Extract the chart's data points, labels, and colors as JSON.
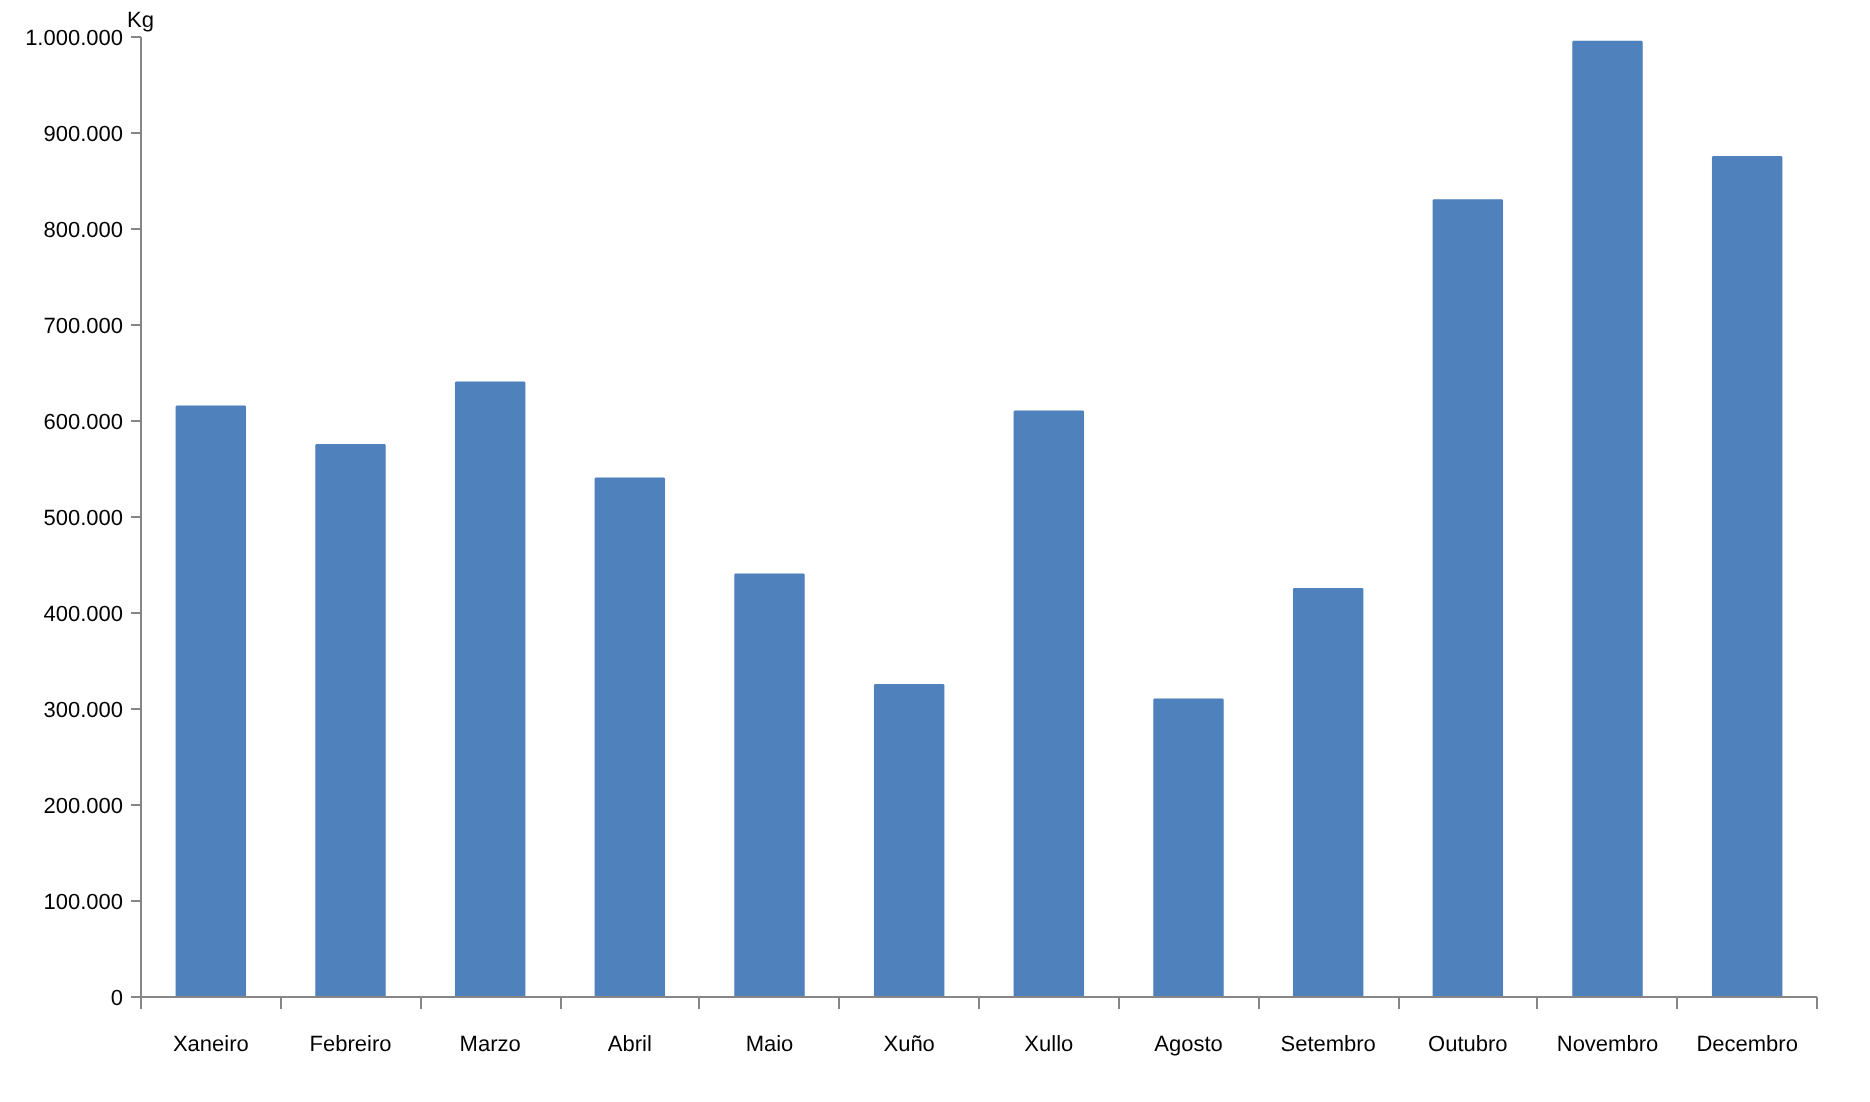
{
  "chart_data": {
    "type": "bar",
    "ylabel": "Kg",
    "categories": [
      "Xaneiro",
      "Febreiro",
      "Marzo",
      "Abril",
      "Maio",
      "Xuño",
      "Xullo",
      "Agosto",
      "Setembro",
      "Outubro",
      "Novembro",
      "Decembro"
    ],
    "values": [
      615000,
      575000,
      640000,
      540000,
      440000,
      325000,
      610000,
      310000,
      425000,
      830000,
      995000,
      875000
    ],
    "color": "#4f81bd",
    "ylim": [
      0,
      1000000
    ],
    "yticks": [
      0,
      {
        "value": 100000,
        "label": "100.000"
      },
      {
        "value": 200000,
        "label": "200.000"
      },
      {
        "value": 300000,
        "label": "300.000"
      },
      {
        "value": 400000,
        "label": "400.000"
      },
      {
        "value": 500000,
        "label": "500.000"
      },
      {
        "value": 600000,
        "label": "600.000"
      },
      {
        "value": 700000,
        "label": "700.000"
      },
      {
        "value": 800000,
        "label": "800.000"
      },
      {
        "value": 900000,
        "label": "900.000"
      },
      {
        "value": 1000000,
        "label": "1.000.000"
      }
    ],
    "grid": false
  }
}
